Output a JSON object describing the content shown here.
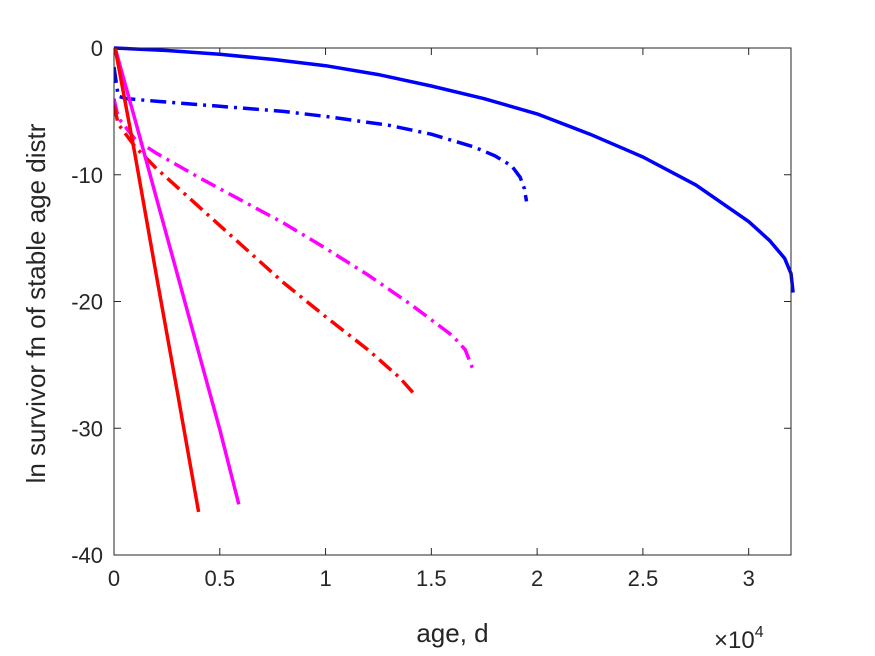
{
  "chart_data": {
    "type": "line",
    "xlabel": "age, d",
    "ylabel": "ln survivor fn of stable age distr",
    "x_multiplier_base": "×10",
    "x_multiplier_exp": "4",
    "xlim": [
      0,
      3.2
    ],
    "ylim": [
      -40,
      0
    ],
    "xticks": [
      0,
      0.5,
      1,
      1.5,
      2,
      2.5,
      3
    ],
    "xtick_labels": [
      "0",
      "0.5",
      "1",
      "1.5",
      "2",
      "2.5",
      "3"
    ],
    "yticks": [
      0,
      -10,
      -20,
      -30,
      -40
    ],
    "ytick_labels": [
      "0",
      "-10",
      "-20",
      "-30",
      "-40"
    ],
    "grid": false,
    "series": [
      {
        "color": "#0000ff",
        "dash": "solid",
        "x": [
          0,
          0.25,
          0.5,
          0.75,
          1.0,
          1.25,
          1.5,
          1.75,
          2.0,
          2.25,
          2.5,
          2.75,
          3.0,
          3.1,
          3.17,
          3.2,
          3.21
        ],
        "y": [
          0,
          -0.2,
          -0.5,
          -0.9,
          -1.4,
          -2.1,
          -3.0,
          -4.0,
          -5.2,
          -6.8,
          -8.6,
          -10.8,
          -13.7,
          -15.2,
          -16.6,
          -17.8,
          -19.3
        ]
      },
      {
        "color": "#0000ff",
        "dash": "dashdot",
        "x": [
          0,
          0.02,
          0.06,
          0.2,
          0.5,
          0.8,
          1.0,
          1.3,
          1.5,
          1.7,
          1.8,
          1.88,
          1.92,
          1.94,
          1.95
        ],
        "y": [
          -1.5,
          -3.8,
          -4.0,
          -4.2,
          -4.6,
          -5.0,
          -5.4,
          -6.1,
          -6.8,
          -7.8,
          -8.5,
          -9.3,
          -10.2,
          -11.1,
          -12.1
        ]
      },
      {
        "color": "#ff00ff",
        "dash": "dashdot",
        "x": [
          0,
          0.02,
          0.1,
          0.2,
          0.4,
          0.6,
          0.8,
          1.0,
          1.2,
          1.4,
          1.6,
          1.66,
          1.7
        ],
        "y": [
          -4.0,
          -5.5,
          -7.2,
          -8.3,
          -10.2,
          -12.0,
          -13.8,
          -15.8,
          -17.9,
          -20.2,
          -22.7,
          -23.8,
          -25.5
        ]
      },
      {
        "color": "#ff0000",
        "dash": "dashdot",
        "x": [
          0,
          0.02,
          0.1,
          0.2,
          0.4,
          0.6,
          0.8,
          1.0,
          1.2,
          1.35,
          1.43
        ],
        "y": [
          -4.5,
          -6.0,
          -7.8,
          -9.5,
          -12.5,
          -15.5,
          -18.5,
          -21.2,
          -23.8,
          -26.0,
          -27.5
        ]
      },
      {
        "color": "#ff00ff",
        "dash": "solid",
        "x": [
          0.005,
          0.1,
          0.2,
          0.3,
          0.4,
          0.5,
          0.59
        ],
        "y": [
          0,
          -5.7,
          -11.8,
          -17.9,
          -24.0,
          -30.1,
          -36.0
        ]
      },
      {
        "color": "#ff0000",
        "dash": "solid",
        "x": [
          0.005,
          0.1,
          0.2,
          0.3,
          0.4
        ],
        "y": [
          0,
          -8.5,
          -17.9,
          -27.2,
          -36.6
        ]
      }
    ]
  }
}
